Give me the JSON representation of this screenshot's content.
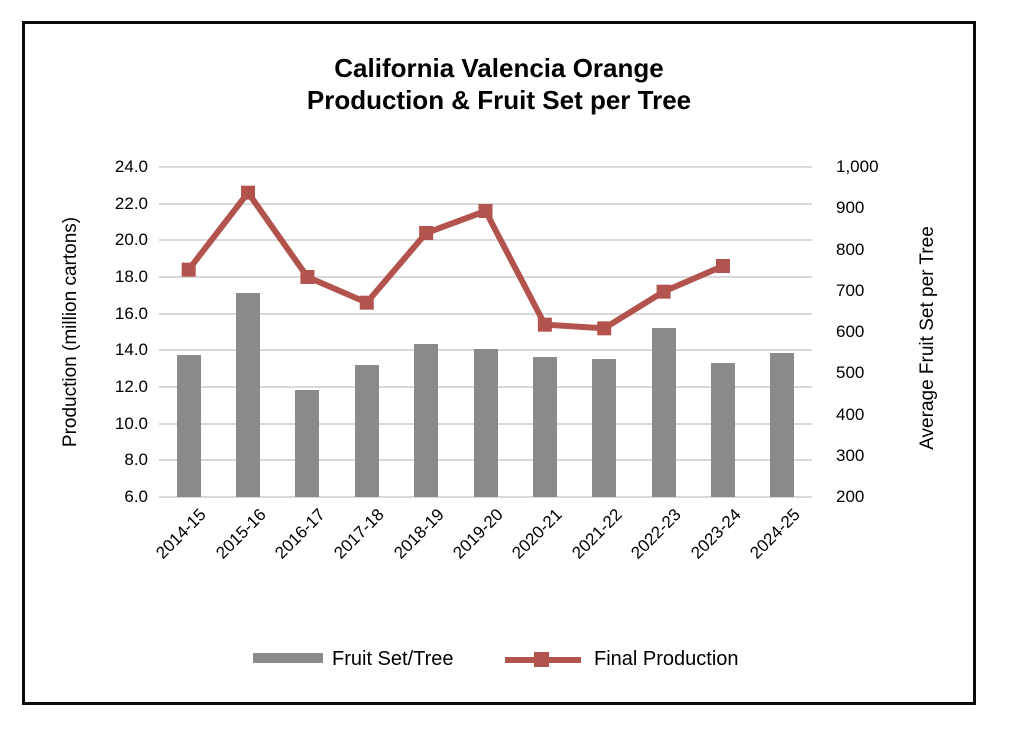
{
  "title": {
    "line1": "California Valencia Orange",
    "line2": "Production & Fruit Set per Tree"
  },
  "chart_data": {
    "type": "bar+line combo",
    "categories": [
      "2014-15",
      "2015-16",
      "2016-17",
      "2017-18",
      "2018-19",
      "2019-20",
      "2020-21",
      "2021-22",
      "2022-23",
      "2023-24",
      "2024-25"
    ],
    "series": [
      {
        "name": "Fruit Set/Tree",
        "type": "bar",
        "axis": "right",
        "color": "#8a8a8a",
        "values": [
          545,
          695,
          460,
          520,
          570,
          560,
          540,
          535,
          610,
          525,
          550
        ]
      },
      {
        "name": "Final Production",
        "type": "line",
        "axis": "left",
        "color": "#b2534e",
        "marker": "square",
        "values": [
          18.4,
          22.6,
          18.0,
          16.6,
          20.4,
          21.6,
          15.4,
          15.2,
          17.2,
          18.6,
          null
        ]
      }
    ],
    "left_axis": {
      "label": "Production (million cartons)",
      "min": 6.0,
      "max": 24.0,
      "step": 2.0,
      "tick_labels": [
        "24.0",
        "22.0",
        "20.0",
        "18.0",
        "16.0",
        "14.0",
        "12.0",
        "10.0",
        "8.0",
        "6.0"
      ]
    },
    "right_axis": {
      "label": "Average Fruit Set per Tree",
      "min": 200,
      "max": 1000,
      "step": 100,
      "tick_labels": [
        "1,000",
        "900",
        "800",
        "700",
        "600",
        "500",
        "400",
        "300",
        "200"
      ]
    },
    "grid": "horizontal",
    "gridline_color": "#d9d9d9",
    "legend_position": "bottom"
  },
  "legend": {
    "bar_label": "Fruit Set/Tree",
    "line_label": "Final Production"
  }
}
